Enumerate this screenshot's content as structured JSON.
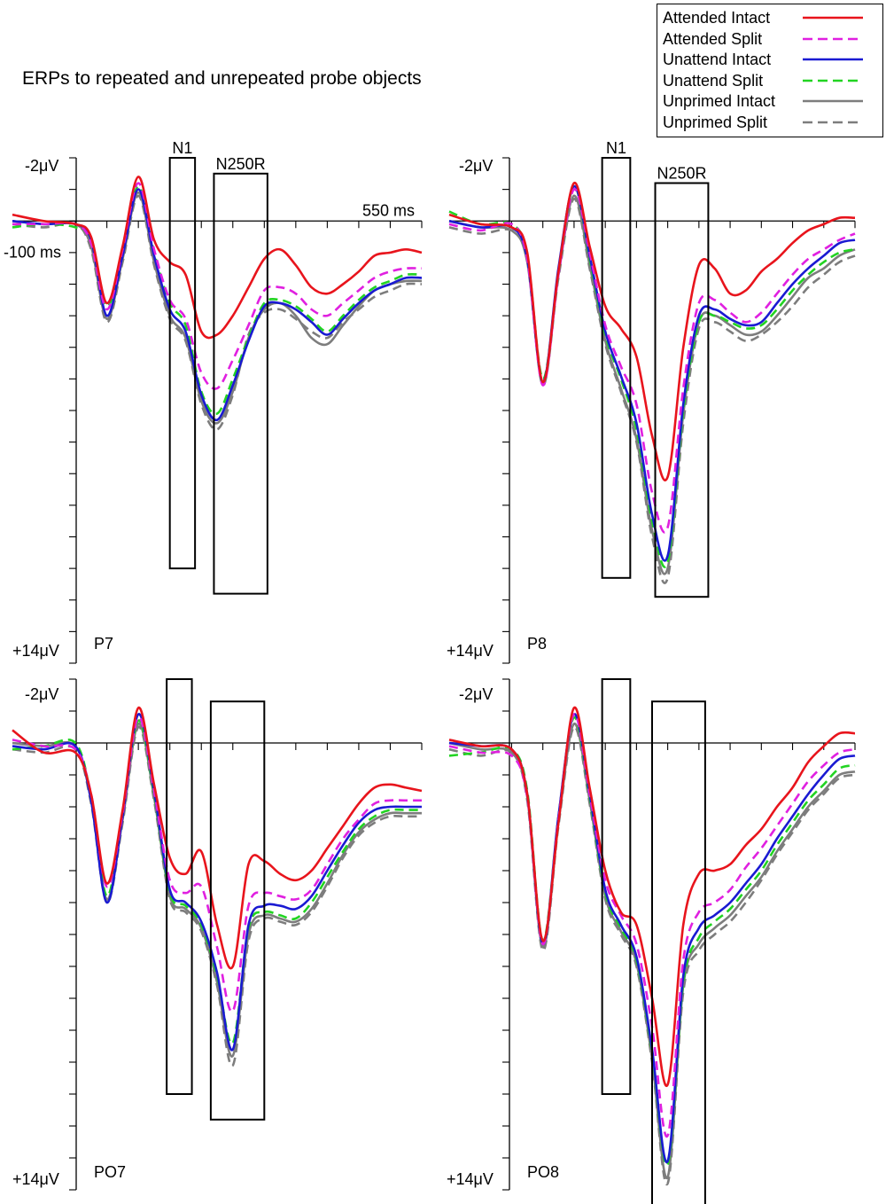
{
  "title": "ERPs to repeated and unrepeated probe objects",
  "legend": [
    {
      "label": "Attended Intact",
      "color": "#e8141c",
      "dash": "solid"
    },
    {
      "label": "Attended Split",
      "color": "#e020e0",
      "dash": "dashed"
    },
    {
      "label": "Unattend Intact",
      "color": "#1a1ad2",
      "dash": "solid"
    },
    {
      "label": "Unattend Split",
      "color": "#22d422",
      "dash": "dashed"
    },
    {
      "label": "Unprimed Intact",
      "color": "#7d7d7d",
      "dash": "solid"
    },
    {
      "label": "Unprimed Split",
      "color": "#7d7d7d",
      "dash": "dashed"
    }
  ],
  "chart_data": [
    {
      "type": "line",
      "electrode": "P7",
      "x": [
        -100,
        -50,
        0,
        25,
        50,
        75,
        100,
        125,
        150,
        175,
        200,
        225,
        250,
        275,
        300,
        325,
        350,
        375,
        400,
        425,
        450,
        475,
        500,
        525,
        550
      ],
      "xlim": [
        -100,
        550
      ],
      "ylim": [
        -2,
        14
      ],
      "y_tick_labels": {
        "top": "-2μV",
        "bottom": "+14μV",
        "x_start": "-100 ms",
        "x_end": "550 ms"
      },
      "windows": [
        {
          "label": "N1",
          "x_range": [
            150,
            190
          ],
          "y_range": [
            -2,
            11
          ]
        },
        {
          "label": "N250R",
          "x_range": [
            220,
            305
          ],
          "y_range": [
            -1.5,
            11.8
          ]
        }
      ],
      "series": [
        {
          "name": "Attended Intact",
          "values": [
            -0.2,
            0,
            0.1,
            0.5,
            2.6,
            0.8,
            -1.4,
            0.6,
            1.3,
            1.7,
            3.5,
            3.6,
            3.0,
            2.1,
            1.2,
            0.9,
            1.4,
            2.1,
            2.3,
            2.0,
            1.6,
            1.1,
            1.0,
            0.9,
            1.0
          ]
        },
        {
          "name": "Attended Split",
          "values": [
            0.1,
            0.1,
            0.1,
            0.7,
            2.8,
            0.9,
            -1.2,
            0.9,
            2.5,
            3.1,
            4.8,
            5.3,
            4.4,
            3.3,
            2.2,
            2.1,
            2.3,
            2.8,
            3.0,
            2.6,
            2.2,
            1.8,
            1.6,
            1.5,
            1.5
          ]
        },
        {
          "name": "Unattend Intact",
          "values": [
            0.0,
            0.1,
            0.1,
            0.6,
            3.0,
            1.1,
            -1.0,
            1.1,
            2.8,
            3.5,
            5.5,
            6.3,
            5.2,
            3.8,
            2.7,
            2.6,
            2.8,
            3.2,
            3.6,
            3.1,
            2.6,
            2.2,
            2.0,
            1.8,
            1.8
          ]
        },
        {
          "name": "Unattend Split",
          "values": [
            0.2,
            0.1,
            0.2,
            0.6,
            2.7,
            1.0,
            -1.1,
            1.0,
            2.6,
            3.3,
            5.4,
            6.1,
            5.0,
            3.7,
            2.6,
            2.5,
            2.7,
            3.1,
            3.5,
            3.0,
            2.5,
            2.1,
            1.9,
            1.7,
            1.7
          ]
        },
        {
          "name": "Unprimed Intact",
          "values": [
            0.0,
            0.1,
            0.1,
            0.8,
            3.1,
            1.2,
            -0.9,
            1.3,
            3.0,
            3.7,
            5.7,
            6.4,
            5.4,
            3.7,
            2.8,
            2.6,
            3.0,
            3.7,
            3.9,
            3.3,
            2.7,
            2.2,
            2.0,
            1.9,
            1.9
          ]
        },
        {
          "name": "Unprimed Split",
          "values": [
            0.1,
            0.2,
            0.1,
            0.9,
            3.2,
            1.3,
            -0.8,
            1.4,
            3.1,
            3.8,
            5.8,
            6.6,
            5.5,
            3.6,
            2.9,
            2.8,
            3.1,
            3.5,
            3.7,
            3.2,
            2.8,
            2.4,
            2.2,
            2.0,
            2.0
          ]
        }
      ]
    },
    {
      "type": "line",
      "electrode": "P8",
      "x": [
        -100,
        -50,
        0,
        25,
        50,
        75,
        100,
        125,
        150,
        175,
        200,
        225,
        250,
        275,
        300,
        325,
        350,
        375,
        400,
        425,
        450,
        475,
        500,
        525,
        550
      ],
      "xlim": [
        -100,
        550
      ],
      "ylim": [
        -2,
        14
      ],
      "y_tick_labels": {
        "top": "-2μV",
        "bottom": "+14μV"
      },
      "windows": [
        {
          "label": "N1",
          "x_range": [
            145,
            190
          ],
          "y_range": [
            -2,
            11.3
          ]
        },
        {
          "label": "N250R",
          "x_range": [
            230,
            315
          ],
          "y_range": [
            -1.2,
            11.9
          ]
        }
      ],
      "series": [
        {
          "name": "Attended Intact",
          "values": [
            -0.2,
            0.1,
            0.2,
            1.0,
            5.1,
            1.6,
            -1.2,
            0.8,
            2.7,
            3.4,
            4.3,
            6.8,
            8.1,
            4.0,
            1.4,
            1.5,
            2.3,
            2.2,
            1.6,
            1.2,
            0.7,
            0.3,
            0.1,
            -0.1,
            -0.1
          ]
        },
        {
          "name": "Attended Split",
          "values": [
            0.1,
            0.3,
            0.1,
            1.2,
            5.2,
            1.7,
            -1.0,
            1.0,
            3.3,
            4.6,
            5.8,
            8.6,
            9.7,
            5.3,
            2.6,
            2.5,
            2.9,
            3.2,
            2.9,
            2.3,
            1.7,
            1.2,
            0.9,
            0.6,
            0.4
          ]
        },
        {
          "name": "Unattend Intact",
          "values": [
            0.0,
            0.2,
            0.2,
            1.2,
            5.1,
            1.5,
            -1.1,
            1.1,
            3.5,
            4.9,
            6.4,
            9.3,
            10.6,
            5.8,
            3.0,
            2.8,
            3.1,
            3.3,
            3.2,
            2.6,
            2.0,
            1.5,
            1.1,
            0.7,
            0.6
          ]
        },
        {
          "name": "Unattend Split",
          "values": [
            -0.3,
            0.1,
            0.1,
            1.1,
            5.0,
            1.6,
            -1.1,
            1.2,
            3.6,
            5.0,
            6.6,
            9.5,
            10.8,
            6.0,
            3.2,
            3.0,
            3.2,
            3.4,
            3.3,
            2.8,
            2.2,
            1.7,
            1.3,
            1.0,
            0.9
          ]
        },
        {
          "name": "Unprimed Intact",
          "values": [
            0.0,
            0.2,
            0.3,
            1.3,
            5.1,
            1.7,
            -0.8,
            1.4,
            3.8,
            5.3,
            6.9,
            9.8,
            11.0,
            6.1,
            3.2,
            3.0,
            3.3,
            3.6,
            3.5,
            3.0,
            2.4,
            1.8,
            1.5,
            1.1,
            0.9
          ]
        },
        {
          "name": "Unprimed Split",
          "values": [
            0.2,
            0.4,
            0.3,
            1.2,
            5.2,
            1.8,
            -0.7,
            1.5,
            3.9,
            5.4,
            7.0,
            10.0,
            11.3,
            6.4,
            3.4,
            3.2,
            3.5,
            3.8,
            3.6,
            3.2,
            2.7,
            2.1,
            1.7,
            1.3,
            1.1
          ]
        }
      ]
    },
    {
      "type": "line",
      "electrode": "PO7",
      "x": [
        -100,
        -50,
        0,
        25,
        50,
        75,
        100,
        125,
        150,
        175,
        200,
        225,
        250,
        275,
        300,
        325,
        350,
        375,
        400,
        425,
        450,
        475,
        500,
        525,
        550
      ],
      "xlim": [
        -100,
        550
      ],
      "ylim": [
        -2,
        14
      ],
      "y_tick_labels": {
        "top": "-2μV",
        "bottom": "+14μV"
      },
      "windows": [
        {
          "label": "N1",
          "x_range": [
            145,
            185
          ],
          "y_range": [
            -2,
            11
          ]
        },
        {
          "label": "N250R",
          "x_range": [
            215,
            300
          ],
          "y_range": [
            -1.3,
            11.8
          ]
        }
      ],
      "series": [
        {
          "name": "Attended Intact",
          "values": [
            -0.4,
            0.3,
            0.3,
            1.6,
            4.4,
            2.1,
            -1.1,
            1.3,
            3.6,
            4.1,
            3.4,
            5.7,
            7.0,
            3.8,
            3.7,
            4.1,
            4.3,
            4.0,
            3.3,
            2.6,
            1.9,
            1.4,
            1.3,
            1.4,
            1.5
          ]
        },
        {
          "name": "Attended Split",
          "values": [
            -0.1,
            0.1,
            0.2,
            1.6,
            4.5,
            2.2,
            -0.8,
            1.5,
            4.3,
            4.7,
            4.5,
            6.4,
            8.4,
            5.1,
            4.7,
            4.8,
            4.9,
            4.6,
            3.8,
            3.0,
            2.4,
            1.9,
            1.8,
            1.8,
            1.8
          ]
        },
        {
          "name": "Unattend Intact",
          "values": [
            0.1,
            0.2,
            0.1,
            1.8,
            5.0,
            2.3,
            -0.9,
            1.5,
            4.6,
            5.0,
            5.6,
            7.2,
            9.6,
            5.7,
            5.1,
            5.1,
            5.2,
            4.8,
            4.0,
            3.2,
            2.5,
            2.1,
            2.0,
            2.0,
            2.0
          ]
        },
        {
          "name": "Unattend Split",
          "values": [
            0.2,
            0.1,
            0.0,
            1.7,
            4.8,
            2.2,
            -0.7,
            1.6,
            4.7,
            5.1,
            5.7,
            7.3,
            9.4,
            5.8,
            5.3,
            5.4,
            5.5,
            5.0,
            4.2,
            3.4,
            2.7,
            2.3,
            2.1,
            2.1,
            2.1
          ]
        },
        {
          "name": "Unprimed Intact",
          "values": [
            0.0,
            0.1,
            0.1,
            1.8,
            4.9,
            2.4,
            -0.6,
            1.7,
            4.8,
            5.2,
            5.8,
            7.5,
            9.8,
            6.0,
            5.4,
            5.5,
            5.6,
            5.2,
            4.4,
            3.5,
            2.8,
            2.4,
            2.2,
            2.2,
            2.2
          ]
        },
        {
          "name": "Unprimed Split",
          "values": [
            0.2,
            0.3,
            0.2,
            1.9,
            5.0,
            2.5,
            -0.5,
            1.8,
            4.9,
            5.3,
            5.9,
            7.6,
            10.1,
            6.2,
            5.5,
            5.6,
            5.7,
            5.3,
            4.5,
            3.6,
            2.9,
            2.5,
            2.3,
            2.3,
            2.3
          ]
        }
      ]
    },
    {
      "type": "line",
      "electrode": "PO8",
      "x": [
        -100,
        -50,
        0,
        25,
        50,
        75,
        100,
        125,
        150,
        175,
        200,
        225,
        250,
        275,
        300,
        325,
        350,
        375,
        400,
        425,
        450,
        475,
        500,
        525,
        550
      ],
      "xlim": [
        -100,
        550
      ],
      "ylim": [
        -2,
        14
      ],
      "y_tick_labels": {
        "top": "-2μV",
        "bottom": "+14μV"
      },
      "windows": [
        {
          "label": "N1",
          "x_range": [
            145,
            190
          ],
          "y_range": [
            -2,
            11
          ]
        },
        {
          "label": "N250R",
          "x_range": [
            225,
            310
          ],
          "y_range": [
            -1.3,
            14.8
          ]
        }
      ],
      "series": [
        {
          "name": "Attended Intact",
          "values": [
            -0.1,
            0.1,
            0.2,
            1.6,
            6.2,
            2.5,
            -1.1,
            1.4,
            4.0,
            5.3,
            5.7,
            8.0,
            10.7,
            5.7,
            4.1,
            4.0,
            3.8,
            3.2,
            2.7,
            2.0,
            1.4,
            0.6,
            0.1,
            -0.3,
            -0.3
          ]
        },
        {
          "name": "Attended Split",
          "values": [
            0.1,
            0.3,
            0.4,
            1.7,
            6.3,
            2.4,
            -0.9,
            1.6,
            4.3,
            5.4,
            6.3,
            8.9,
            12.3,
            6.8,
            5.3,
            5.0,
            4.6,
            3.9,
            3.3,
            2.6,
            1.9,
            1.2,
            0.7,
            0.3,
            0.2
          ]
        },
        {
          "name": "Unattend Intact",
          "values": [
            0.0,
            0.1,
            0.2,
            1.6,
            6.3,
            2.3,
            -0.9,
            1.6,
            4.6,
            5.7,
            6.7,
            9.6,
            13.1,
            7.3,
            5.8,
            5.4,
            5.0,
            4.4,
            3.8,
            3.0,
            2.3,
            1.6,
            1.0,
            0.5,
            0.4
          ]
        },
        {
          "name": "Unattend Split",
          "values": [
            0.4,
            0.3,
            0.2,
            1.5,
            6.2,
            2.3,
            -0.8,
            1.7,
            4.7,
            5.8,
            6.8,
            9.7,
            13.2,
            7.5,
            6.1,
            5.6,
            5.2,
            4.6,
            4.0,
            3.2,
            2.5,
            1.8,
            1.3,
            0.8,
            0.7
          ]
        },
        {
          "name": "Unprimed Intact",
          "values": [
            0.0,
            0.2,
            0.3,
            1.7,
            6.4,
            2.5,
            -0.6,
            1.8,
            4.8,
            5.9,
            6.9,
            9.9,
            13.6,
            7.6,
            6.3,
            5.8,
            5.4,
            4.8,
            4.2,
            3.4,
            2.7,
            2.0,
            1.5,
            1.0,
            0.9
          ]
        },
        {
          "name": "Unprimed Split",
          "values": [
            0.2,
            0.4,
            0.3,
            1.8,
            6.5,
            2.6,
            -0.5,
            1.9,
            4.9,
            6.0,
            7.0,
            10.0,
            13.8,
            7.8,
            6.5,
            6.0,
            5.6,
            5.0,
            4.3,
            3.5,
            2.8,
            2.1,
            1.6,
            1.1,
            1.0
          ]
        }
      ]
    }
  ]
}
